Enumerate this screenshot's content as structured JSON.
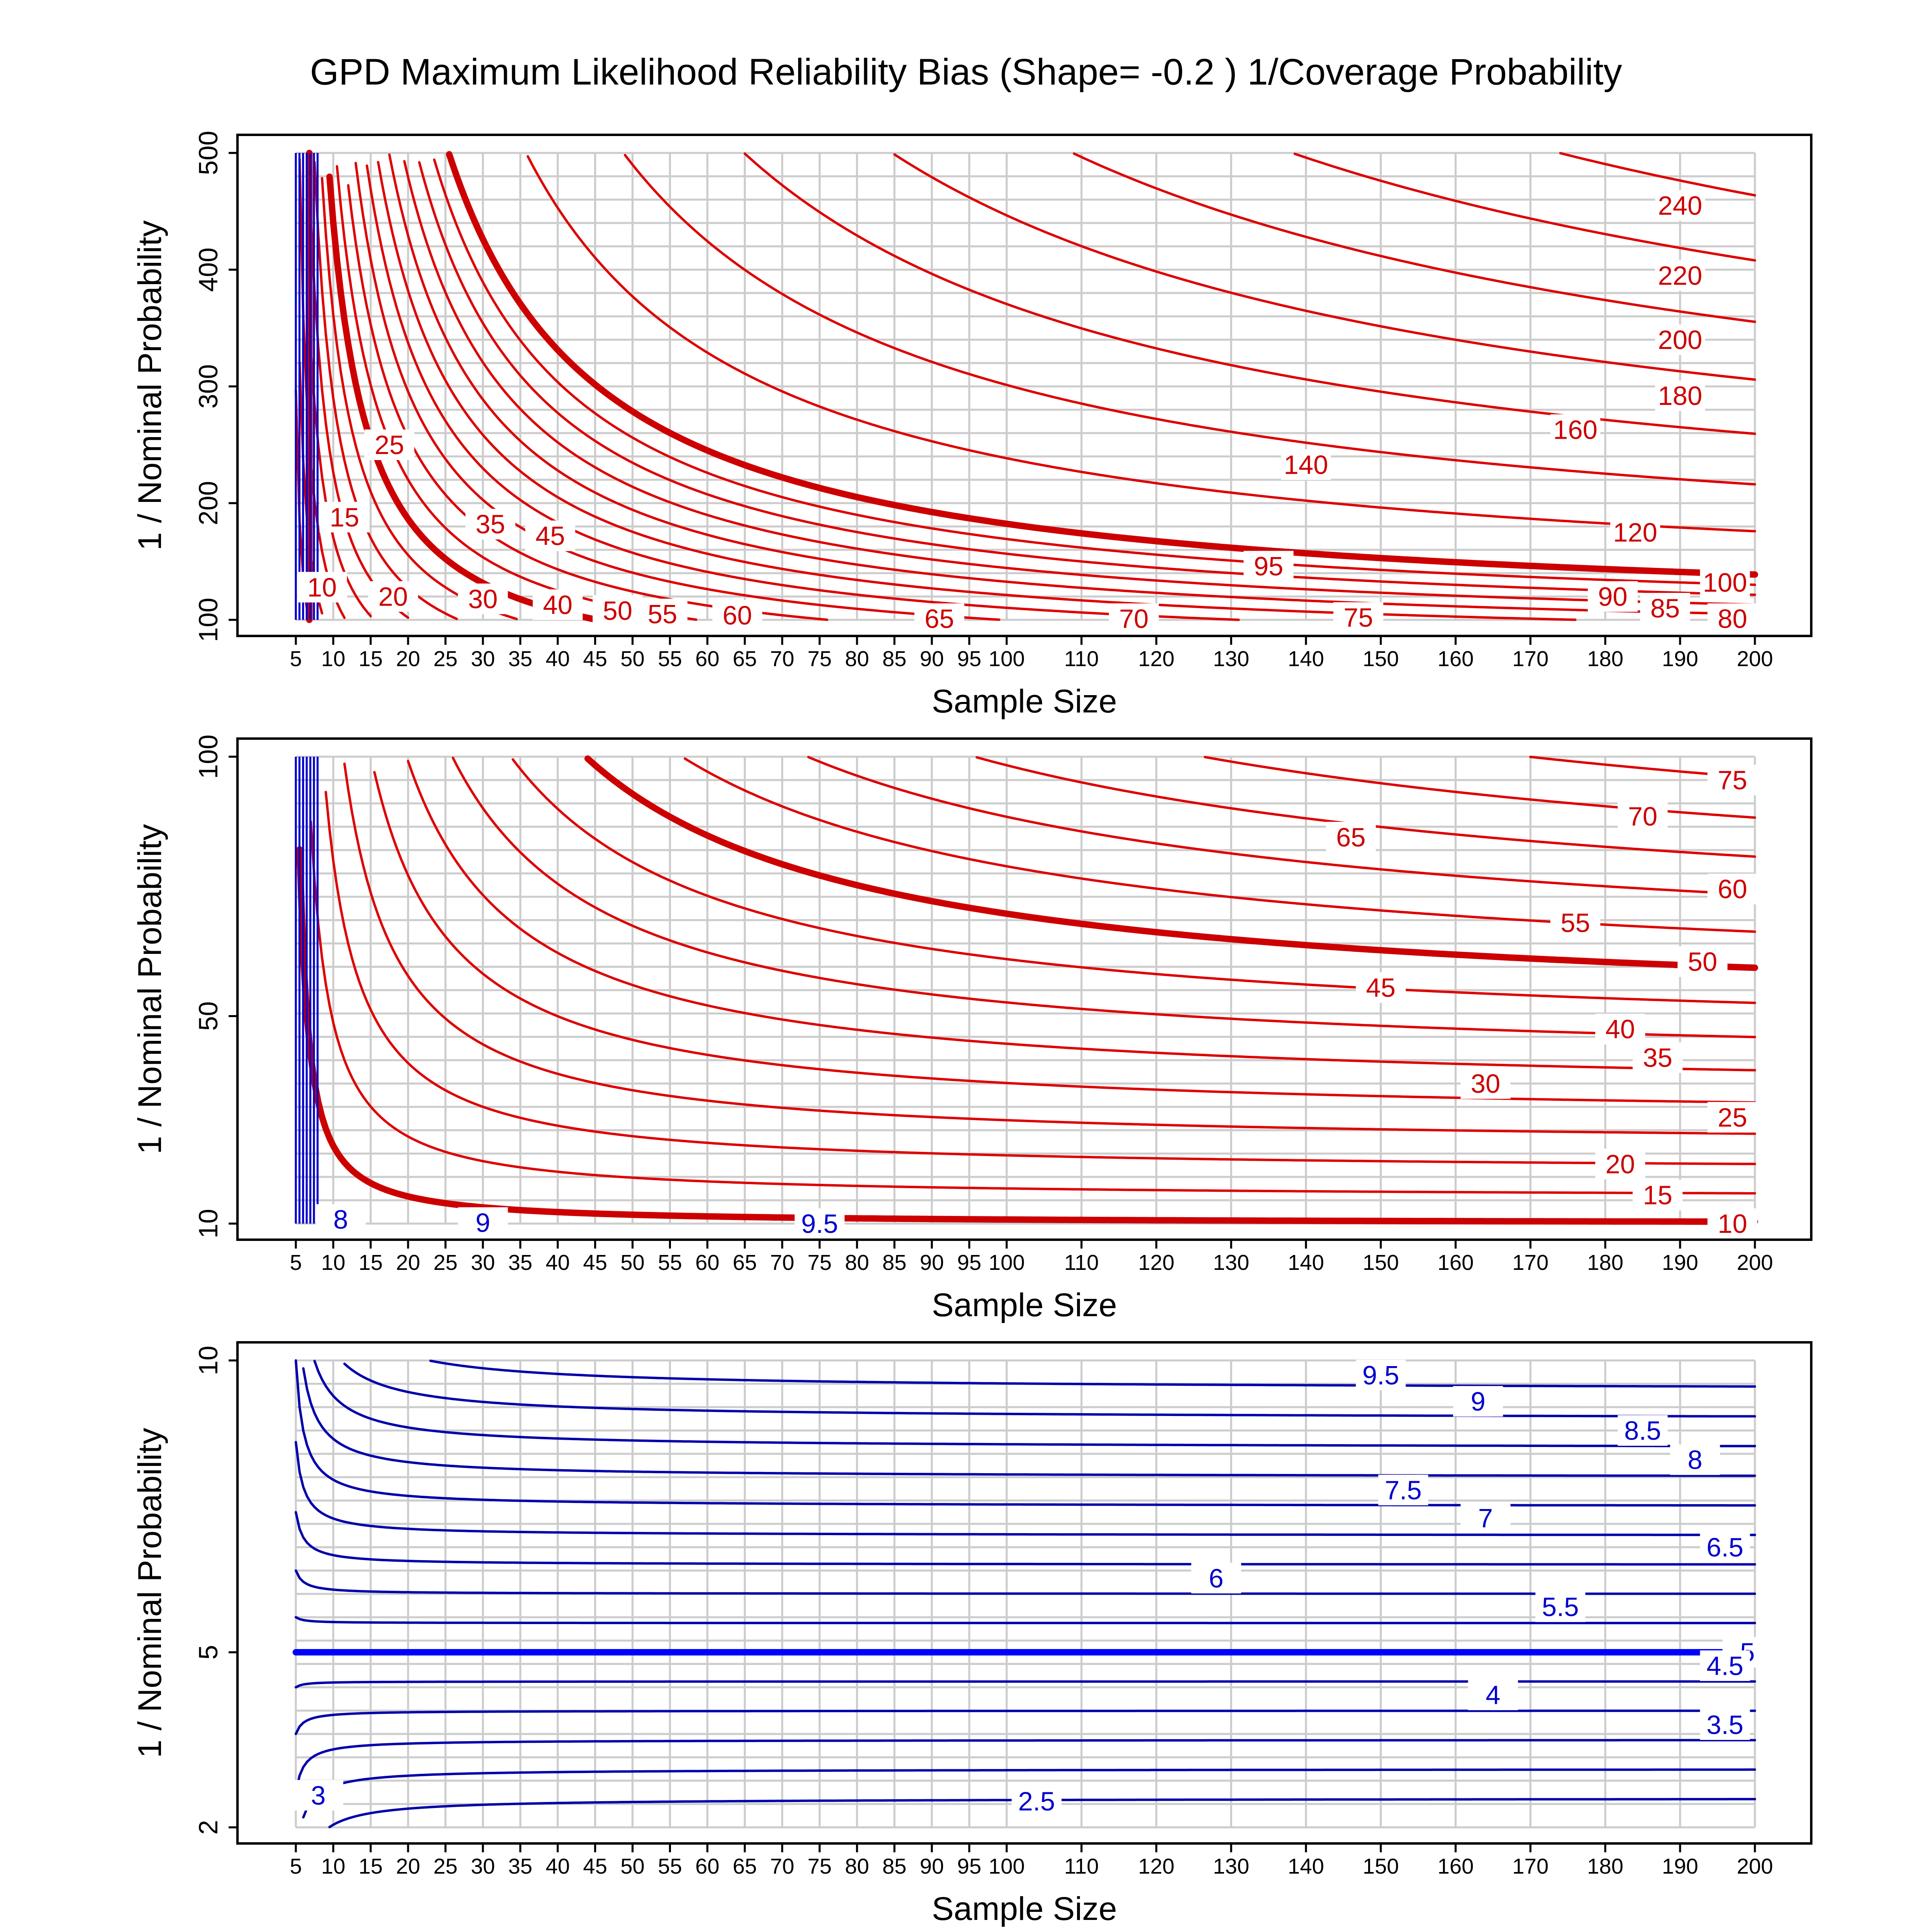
{
  "chart_data": {
    "type": "contour",
    "title": "GPD Maximum Likelihood Reliability Bias (Shape= -0.2 ) 1/Coverage Probability",
    "xlabel": "Sample Size",
    "ylabel": "1 / Nominal Probability",
    "x_ticks": [
      5,
      10,
      15,
      20,
      25,
      30,
      35,
      40,
      45,
      50,
      55,
      60,
      65,
      70,
      75,
      80,
      85,
      90,
      95,
      100,
      110,
      120,
      130,
      140,
      150,
      160,
      170,
      180,
      190,
      200
    ],
    "colors": {
      "above": "#dd0000",
      "below": "#0000cc",
      "thick_above": "#cc0000",
      "thick_below": "#0000ff"
    },
    "panels": [
      {
        "id": "top",
        "y_ticks": [
          100,
          200,
          300,
          400,
          500
        ],
        "ylim": [
          100,
          500
        ],
        "contour_labels": [
          {
            "text": "240",
            "x": 190,
            "y": 455,
            "color": "red"
          },
          {
            "text": "220",
            "x": 190,
            "y": 395,
            "color": "red"
          },
          {
            "text": "200",
            "x": 190,
            "y": 340,
            "color": "red"
          },
          {
            "text": "180",
            "x": 190,
            "y": 292,
            "color": "red"
          },
          {
            "text": "160",
            "x": 176,
            "y": 263,
            "color": "red"
          },
          {
            "text": "140",
            "x": 140,
            "y": 233,
            "color": "red"
          },
          {
            "text": "120",
            "x": 184,
            "y": 175,
            "color": "red"
          },
          {
            "text": "100",
            "x": 196,
            "y": 132,
            "color": "red"
          },
          {
            "text": "95",
            "x": 135,
            "y": 146,
            "color": "red"
          },
          {
            "text": "90",
            "x": 181,
            "y": 120,
            "color": "red"
          },
          {
            "text": "85",
            "x": 188,
            "y": 110,
            "color": "red"
          },
          {
            "text": "80",
            "x": 197,
            "y": 101,
            "color": "red"
          },
          {
            "text": "75",
            "x": 147,
            "y": 102,
            "color": "red"
          },
          {
            "text": "70",
            "x": 117,
            "y": 101,
            "color": "red"
          },
          {
            "text": "65",
            "x": 91,
            "y": 101,
            "color": "red"
          },
          {
            "text": "60",
            "x": 64,
            "y": 104,
            "color": "red"
          },
          {
            "text": "55",
            "x": 54,
            "y": 105,
            "color": "red"
          },
          {
            "text": "50",
            "x": 48,
            "y": 108,
            "color": "red"
          },
          {
            "text": "45",
            "x": 39,
            "y": 172,
            "color": "red"
          },
          {
            "text": "40",
            "x": 40,
            "y": 113,
            "color": "red"
          },
          {
            "text": "35",
            "x": 31,
            "y": 182,
            "color": "red"
          },
          {
            "text": "30",
            "x": 30,
            "y": 118,
            "color": "red"
          },
          {
            "text": "25",
            "x": 17.5,
            "y": 250,
            "color": "red"
          },
          {
            "text": "20",
            "x": 18,
            "y": 120,
            "color": "red"
          },
          {
            "text": "15",
            "x": 11.5,
            "y": 188,
            "color": "red"
          },
          {
            "text": "10",
            "x": 8.5,
            "y": 128,
            "color": "red"
          }
        ]
      },
      {
        "id": "middle",
        "y_ticks": [
          10,
          50,
          100
        ],
        "ylim": [
          10,
          100
        ],
        "contour_labels": [
          {
            "text": "75",
            "x": 197,
            "y": 95.5,
            "color": "red"
          },
          {
            "text": "70",
            "x": 185,
            "y": 88.5,
            "color": "red"
          },
          {
            "text": "65",
            "x": 146,
            "y": 84.5,
            "color": "red"
          },
          {
            "text": "60",
            "x": 197,
            "y": 74.5,
            "color": "red"
          },
          {
            "text": "55",
            "x": 176,
            "y": 68,
            "color": "red"
          },
          {
            "text": "50",
            "x": 193,
            "y": 60.5,
            "color": "red"
          },
          {
            "text": "45",
            "x": 150,
            "y": 55.5,
            "color": "red"
          },
          {
            "text": "40",
            "x": 182,
            "y": 47.5,
            "color": "red"
          },
          {
            "text": "35",
            "x": 187,
            "y": 42,
            "color": "red"
          },
          {
            "text": "30",
            "x": 164,
            "y": 37,
            "color": "red"
          },
          {
            "text": "25",
            "x": 197,
            "y": 30.5,
            "color": "red"
          },
          {
            "text": "20",
            "x": 182,
            "y": 21.5,
            "color": "red"
          },
          {
            "text": "15",
            "x": 187,
            "y": 15.5,
            "color": "red"
          },
          {
            "text": "10",
            "x": 197,
            "y": 10,
            "color": "red"
          },
          {
            "text": "9.5",
            "x": 75,
            "y": 10,
            "color": "blue"
          },
          {
            "text": "9",
            "x": 30,
            "y": 10.2,
            "color": "blue"
          },
          {
            "text": "8",
            "x": 11,
            "y": 10.8,
            "color": "blue"
          }
        ]
      },
      {
        "id": "bottom",
        "y_ticks": [
          2,
          5,
          10
        ],
        "ylim": [
          2,
          10
        ],
        "contour_labels": [
          {
            "text": "9.5",
            "x": 150,
            "y": 9.75,
            "color": "blue"
          },
          {
            "text": "9",
            "x": 163,
            "y": 9.3,
            "color": "blue"
          },
          {
            "text": "8.5",
            "x": 185,
            "y": 8.8,
            "color": "blue"
          },
          {
            "text": "8",
            "x": 192,
            "y": 8.3,
            "color": "blue"
          },
          {
            "text": "7.5",
            "x": 153,
            "y": 7.78,
            "color": "blue"
          },
          {
            "text": "7",
            "x": 164,
            "y": 7.3,
            "color": "blue"
          },
          {
            "text": "6.5",
            "x": 196,
            "y": 6.8,
            "color": "blue"
          },
          {
            "text": "6",
            "x": 128,
            "y": 6.27,
            "color": "blue"
          },
          {
            "text": "5.5",
            "x": 174,
            "y": 5.78,
            "color": "blue"
          },
          {
            "text": "5",
            "x": 199,
            "y": 5.0,
            "color": "blue"
          },
          {
            "text": "4.5",
            "x": 196,
            "y": 4.77,
            "color": "blue"
          },
          {
            "text": "4",
            "x": 165,
            "y": 4.27,
            "color": "blue"
          },
          {
            "text": "3.5",
            "x": 196,
            "y": 3.76,
            "color": "blue"
          },
          {
            "text": "3",
            "x": 8,
            "y": 2.55,
            "color": "blue"
          },
          {
            "text": "2.5",
            "x": 104,
            "y": 2.45,
            "color": "blue"
          }
        ]
      }
    ]
  }
}
